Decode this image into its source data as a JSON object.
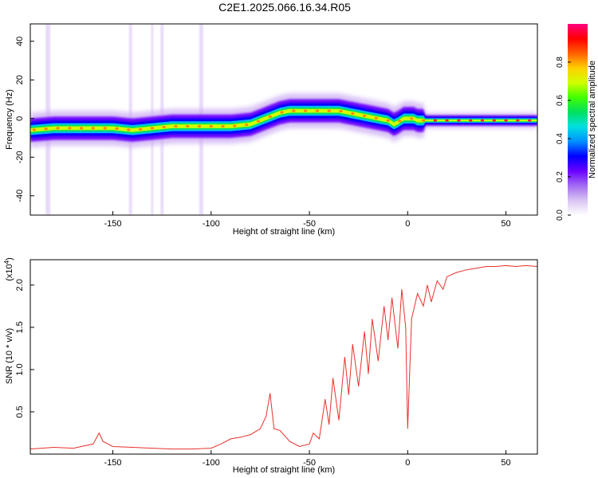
{
  "title": "C2E1.2025.066.16.34.R05",
  "colors": {
    "line": "#e8312b",
    "axis": "#000000",
    "colormap": [
      "#ffffff",
      "#d9c4f2",
      "#a36bf2",
      "#6a00ff",
      "#0000ff",
      "#0090ff",
      "#00e0e0",
      "#00e060",
      "#40ff00",
      "#d0ff00",
      "#ffd000",
      "#ff6000",
      "#ff0000",
      "#ff0080"
    ]
  },
  "chart_data": [
    {
      "type": "heatmap",
      "name": "spectrogram",
      "xlabel": "Height of straight line (km)",
      "ylabel": "Frequency (Hz)",
      "xlim": [
        -192,
        66
      ],
      "ylim": [
        -50,
        49
      ],
      "xticks": [
        -150,
        -100,
        -50,
        0,
        50
      ],
      "xtick_labels": [
        "-150",
        "-100",
        "-50",
        "0",
        "50"
      ],
      "yticks": [
        40,
        20,
        0,
        -20,
        -40
      ],
      "ytick_labels": [
        "40",
        "20",
        "0",
        "-20",
        "-40"
      ],
      "ridge": {
        "x": [
          -192,
          -180,
          -170,
          -160,
          -150,
          -140,
          -130,
          -120,
          -110,
          -100,
          -90,
          -80,
          -75,
          -70,
          -65,
          -60,
          -55,
          -50,
          -45,
          -40,
          -35,
          -30,
          -25,
          -20,
          -15,
          -10,
          -7,
          -5,
          -2,
          0,
          3,
          5,
          10,
          20,
          30,
          40,
          50,
          60,
          66
        ],
        "y": [
          -6,
          -5,
          -5,
          -5,
          -5,
          -6,
          -5,
          -4,
          -4,
          -4,
          -4,
          -3,
          -1,
          1,
          3,
          4,
          4,
          4,
          4,
          4,
          4,
          3,
          2,
          1,
          0,
          -1,
          -3,
          -2,
          0,
          0,
          0,
          -1,
          -1,
          -1,
          -1,
          -1,
          -1,
          -1,
          -1
        ]
      },
      "colorbar": {
        "label": "Normalized spectral amplitude",
        "ticks": [
          0.0,
          0.2,
          0.4,
          0.6,
          0.8
        ],
        "tick_labels": [
          "0.0",
          "0.2",
          "0.4",
          "0.6",
          "0.8"
        ],
        "range": [
          0,
          1
        ]
      }
    },
    {
      "type": "line",
      "name": "snr",
      "xlabel": "Height of straight line (km)",
      "ylabel": "SNR (10 * v/v)",
      "y_multiplier": "(x10",
      "y_multiplier_exp": "4",
      "y_multiplier_close": ")",
      "xlim": [
        -192,
        66
      ],
      "ylim": [
        0,
        23000
      ],
      "xticks": [
        -150,
        -100,
        -50,
        0,
        50
      ],
      "xtick_labels": [
        "-150",
        "-100",
        "-50",
        "0",
        "50"
      ],
      "yticks": [
        5000,
        10000,
        15000,
        20000
      ],
      "ytick_labels": [
        "0.5",
        "1.0",
        "1.5",
        "2.0"
      ],
      "series": [
        {
          "x": [
            -192,
            -180,
            -170,
            -160,
            -157,
            -155,
            -150,
            -140,
            -130,
            -120,
            -110,
            -100,
            -95,
            -90,
            -85,
            -80,
            -75,
            -72,
            -70,
            -68,
            -65,
            -60,
            -55,
            -50,
            -48,
            -45,
            -42,
            -40,
            -38,
            -35,
            -32,
            -30,
            -28,
            -25,
            -22,
            -20,
            -18,
            -15,
            -12,
            -10,
            -8,
            -5,
            -3,
            -1,
            0,
            2,
            5,
            8,
            10,
            12,
            15,
            18,
            20,
            25,
            30,
            35,
            40,
            45,
            50,
            55,
            60,
            66
          ],
          "y": [
            600,
            800,
            700,
            1200,
            2500,
            1500,
            900,
            800,
            700,
            600,
            600,
            700,
            1200,
            1800,
            2000,
            2300,
            3000,
            4500,
            7200,
            3000,
            2800,
            1500,
            900,
            1200,
            2500,
            1800,
            6500,
            3500,
            9000,
            4000,
            11500,
            7000,
            13000,
            8000,
            14500,
            9500,
            16000,
            11000,
            17500,
            13500,
            18500,
            12500,
            19500,
            15000,
            3000,
            16000,
            19000,
            17500,
            20000,
            18000,
            20500,
            19500,
            21000,
            21500,
            21800,
            22000,
            22200,
            22200,
            22300,
            22200,
            22300,
            22200
          ]
        }
      ]
    }
  ]
}
